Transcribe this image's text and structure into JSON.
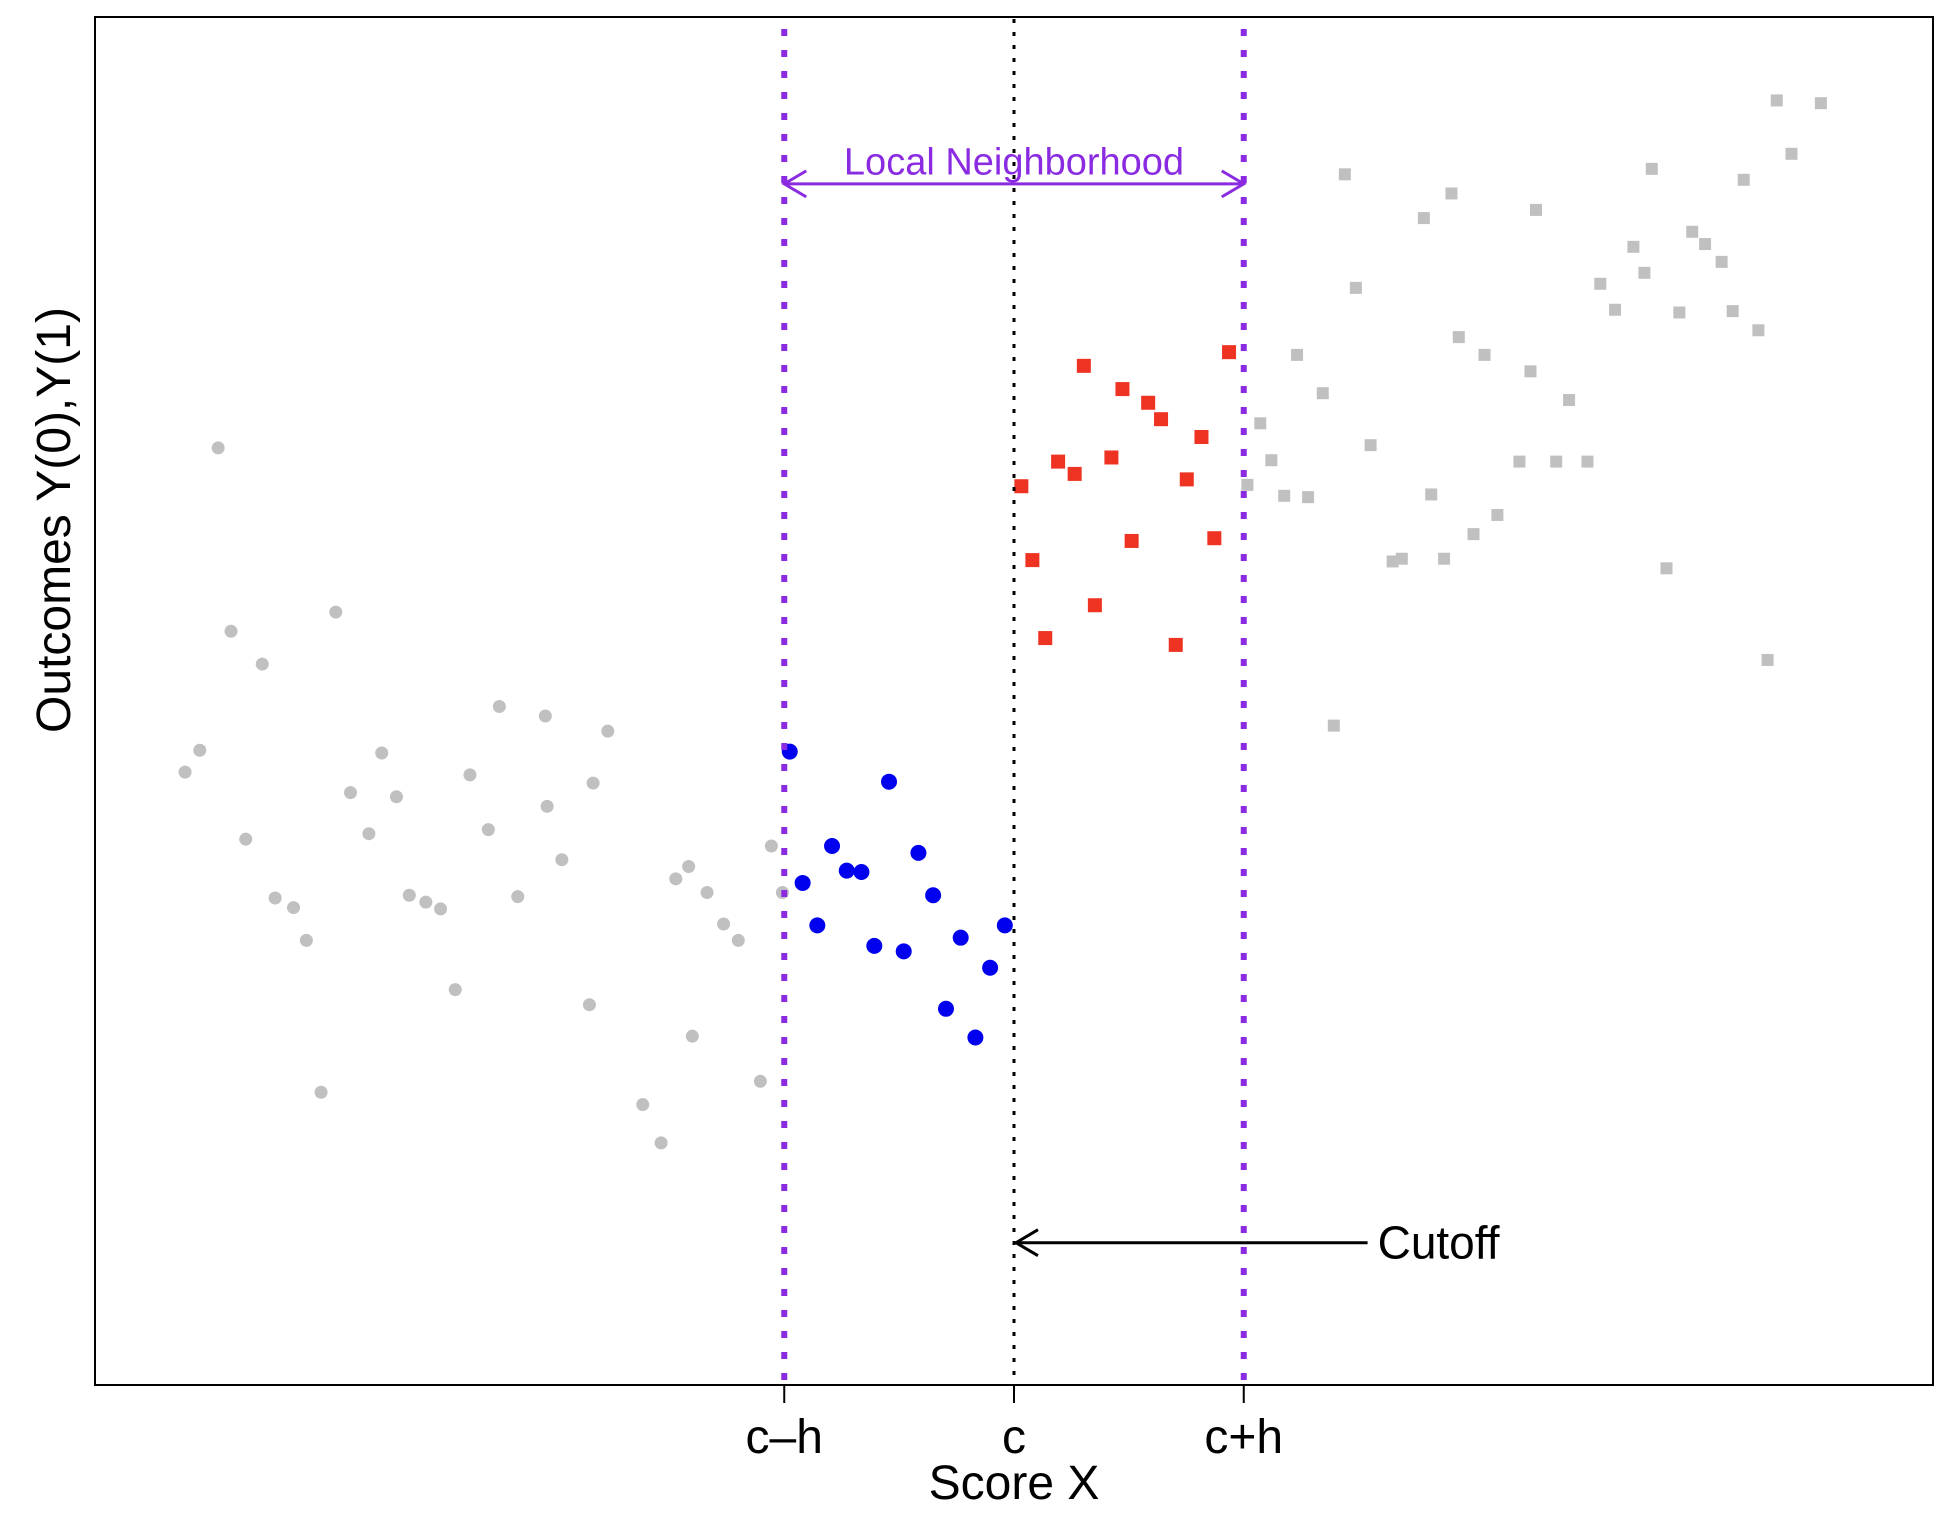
{
  "chart_data": {
    "type": "scatter",
    "xlabel": "Score X",
    "ylabel": "Outcomes Y(0),Y(1)",
    "xlim": [
      0,
      1
    ],
    "ylim": [
      0,
      1
    ],
    "x_ticks": [
      {
        "value": 0.375,
        "label": "c–h"
      },
      {
        "value": 0.5,
        "label": "c"
      },
      {
        "value": 0.625,
        "label": "c+h"
      }
    ],
    "grid": false,
    "cutoff": {
      "x": 0.5,
      "label": "Cutoff",
      "color": "#000000"
    },
    "neighborhood": {
      "left": 0.375,
      "right": 0.625,
      "label": "Local Neighborhood",
      "color": "#8a2be2",
      "label_y": 0.895,
      "arrow_y": 0.878
    },
    "cutoff_arrow": {
      "y": 0.104,
      "text_x": 0.7
    },
    "colors": {
      "control_out": "#c0c0c0",
      "control_in": "#0000ee",
      "treated_in": "#ee3322",
      "treated_out": "#c0c0c0",
      "axis": "#000000"
    },
    "series": [
      {
        "group": "control_outside",
        "marker": "circle",
        "points": [
          [
            0.049,
            0.448
          ],
          [
            0.057,
            0.464
          ],
          [
            0.067,
            0.685
          ],
          [
            0.074,
            0.551
          ],
          [
            0.082,
            0.399
          ],
          [
            0.091,
            0.527
          ],
          [
            0.098,
            0.356
          ],
          [
            0.108,
            0.349
          ],
          [
            0.115,
            0.325
          ],
          [
            0.123,
            0.214
          ],
          [
            0.131,
            0.565
          ],
          [
            0.139,
            0.433
          ],
          [
            0.149,
            0.403
          ],
          [
            0.156,
            0.462
          ],
          [
            0.164,
            0.43
          ],
          [
            0.171,
            0.358
          ],
          [
            0.18,
            0.353
          ],
          [
            0.188,
            0.348
          ],
          [
            0.196,
            0.289
          ],
          [
            0.204,
            0.446
          ],
          [
            0.214,
            0.406
          ],
          [
            0.22,
            0.496
          ],
          [
            0.23,
            0.357
          ],
          [
            0.245,
            0.489
          ],
          [
            0.246,
            0.423
          ],
          [
            0.254,
            0.384
          ],
          [
            0.269,
            0.278
          ],
          [
            0.271,
            0.44
          ],
          [
            0.279,
            0.478
          ],
          [
            0.298,
            0.205
          ],
          [
            0.308,
            0.177
          ],
          [
            0.316,
            0.37
          ],
          [
            0.323,
            0.379
          ],
          [
            0.325,
            0.255
          ],
          [
            0.333,
            0.36
          ],
          [
            0.342,
            0.337
          ],
          [
            0.35,
            0.325
          ],
          [
            0.362,
            0.222
          ],
          [
            0.368,
            0.394
          ],
          [
            0.374,
            0.36
          ]
        ]
      },
      {
        "group": "control_inside",
        "marker": "circle",
        "points": [
          [
            0.378,
            0.463
          ],
          [
            0.385,
            0.367
          ],
          [
            0.393,
            0.336
          ],
          [
            0.401,
            0.394
          ],
          [
            0.409,
            0.376
          ],
          [
            0.417,
            0.375
          ],
          [
            0.424,
            0.321
          ],
          [
            0.432,
            0.441
          ],
          [
            0.44,
            0.317
          ],
          [
            0.448,
            0.389
          ],
          [
            0.456,
            0.358
          ],
          [
            0.463,
            0.275
          ],
          [
            0.471,
            0.327
          ],
          [
            0.479,
            0.254
          ],
          [
            0.487,
            0.305
          ],
          [
            0.495,
            0.336
          ]
        ]
      },
      {
        "group": "treated_inside",
        "marker": "square",
        "points": [
          [
            0.504,
            0.657
          ],
          [
            0.51,
            0.603
          ],
          [
            0.517,
            0.546
          ],
          [
            0.524,
            0.675
          ],
          [
            0.533,
            0.666
          ],
          [
            0.538,
            0.745
          ],
          [
            0.544,
            0.57
          ],
          [
            0.553,
            0.678
          ],
          [
            0.559,
            0.728
          ],
          [
            0.564,
            0.617
          ],
          [
            0.573,
            0.718
          ],
          [
            0.58,
            0.706
          ],
          [
            0.588,
            0.541
          ],
          [
            0.594,
            0.662
          ],
          [
            0.602,
            0.693
          ],
          [
            0.609,
            0.619
          ],
          [
            0.617,
            0.755
          ]
        ]
      },
      {
        "group": "treated_outside",
        "marker": "square",
        "points": [
          [
            0.627,
            0.658
          ],
          [
            0.634,
            0.703
          ],
          [
            0.64,
            0.676
          ],
          [
            0.647,
            0.65
          ],
          [
            0.654,
            0.753
          ],
          [
            0.66,
            0.649
          ],
          [
            0.668,
            0.725
          ],
          [
            0.674,
            0.482
          ],
          [
            0.68,
            0.885
          ],
          [
            0.686,
            0.802
          ],
          [
            0.694,
            0.687
          ],
          [
            0.706,
            0.602
          ],
          [
            0.711,
            0.604
          ],
          [
            0.723,
            0.853
          ],
          [
            0.727,
            0.651
          ],
          [
            0.734,
            0.604
          ],
          [
            0.738,
            0.871
          ],
          [
            0.742,
            0.766
          ],
          [
            0.75,
            0.622
          ],
          [
            0.756,
            0.753
          ],
          [
            0.763,
            0.636
          ],
          [
            0.775,
            0.675
          ],
          [
            0.781,
            0.741
          ],
          [
            0.784,
            0.859
          ],
          [
            0.795,
            0.675
          ],
          [
            0.802,
            0.72
          ],
          [
            0.812,
            0.675
          ],
          [
            0.819,
            0.805
          ],
          [
            0.827,
            0.786
          ],
          [
            0.837,
            0.832
          ],
          [
            0.843,
            0.813
          ],
          [
            0.847,
            0.889
          ],
          [
            0.855,
            0.597
          ],
          [
            0.862,
            0.784
          ],
          [
            0.869,
            0.843
          ],
          [
            0.876,
            0.834
          ],
          [
            0.885,
            0.821
          ],
          [
            0.891,
            0.785
          ],
          [
            0.897,
            0.881
          ],
          [
            0.905,
            0.771
          ],
          [
            0.91,
            0.53
          ],
          [
            0.915,
            0.939
          ],
          [
            0.923,
            0.9
          ],
          [
            0.939,
            0.937
          ]
        ]
      }
    ]
  }
}
